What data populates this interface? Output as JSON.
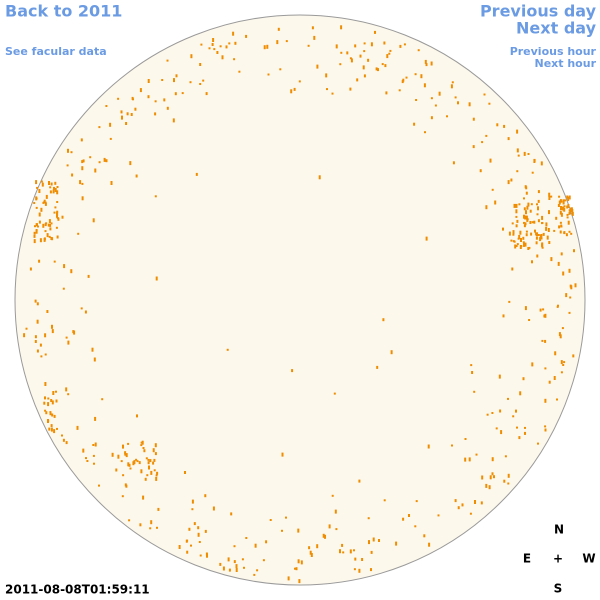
{
  "links": {
    "back": "Back to 2011",
    "facular": "See facular data",
    "previous_day": "Previous day",
    "next_day": "Next day",
    "previous_hour": "Previous hour",
    "next_hour": "Next hour"
  },
  "timestamp": "2011-08-08T01:59:11",
  "compass": {
    "north": "N",
    "east": "E",
    "center": "+",
    "west": "W",
    "south": "S"
  }
}
